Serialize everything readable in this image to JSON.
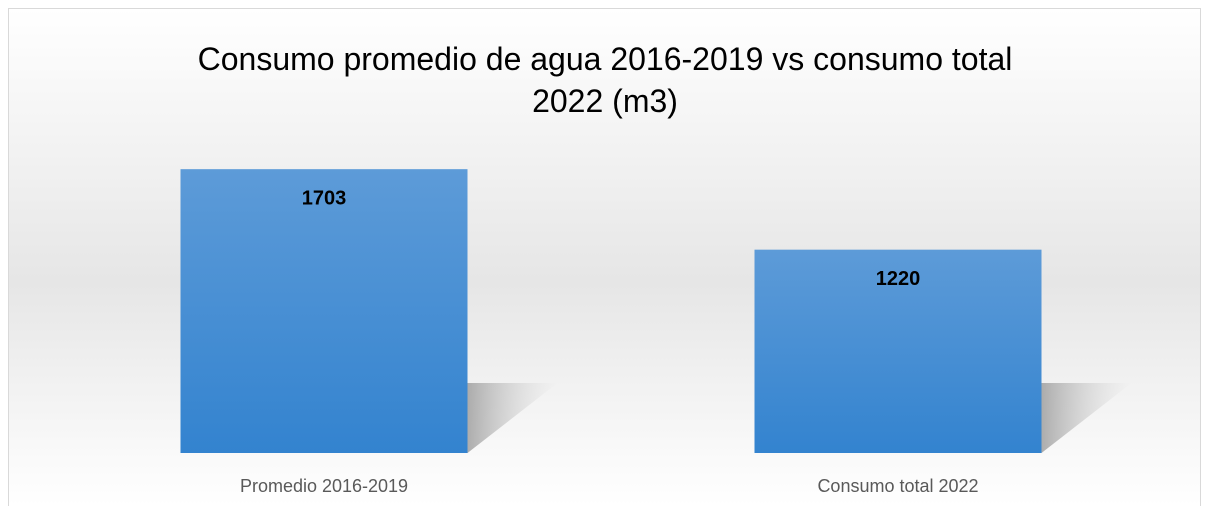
{
  "chart_data": {
    "type": "bar",
    "title": "Consumo promedio de agua 2016-2019 vs consumo total 2022 (m3)",
    "categories": [
      "Promedio 2016-2019",
      "Consumo total 2022"
    ],
    "values": [
      1703,
      1220
    ],
    "color": "#5b9bd5",
    "ylim": [
      0,
      1800
    ]
  }
}
